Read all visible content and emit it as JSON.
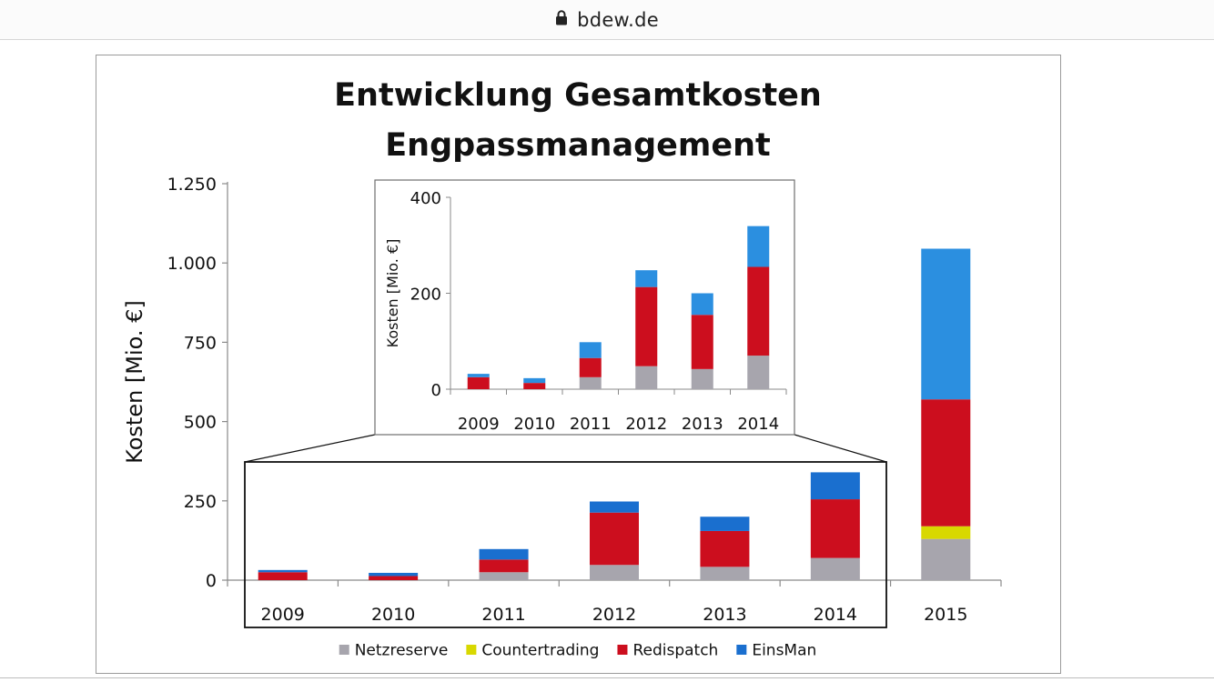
{
  "browser": {
    "url": "bdew.de",
    "lock_icon": "lock-icon"
  },
  "colors": {
    "Netzreserve": "#a7a5ad",
    "Countertrading": "#d8d800",
    "Redispatch": "#cc0e1e",
    "EinsMan": "#1a6fcf",
    "EinsMan_2015": "#2b8fe0"
  },
  "chart_data": [
    {
      "type": "bar",
      "stacked": true,
      "title": "Entwicklung Gesamtkosten Engpassmanagement",
      "ylabel": "Kosten [Mio. €]",
      "xlabel": "",
      "ylim": [
        0,
        1250
      ],
      "yticks": [
        0,
        250,
        500,
        750,
        1000,
        1250
      ],
      "ytick_labels": [
        "0",
        "250",
        "500",
        "750",
        "1.000",
        "1.250"
      ],
      "grid": false,
      "legend": "bottom",
      "categories": [
        "2009",
        "2010",
        "2011",
        "2012",
        "2013",
        "2014",
        "2015"
      ],
      "series": [
        {
          "name": "Netzreserve",
          "values": [
            0,
            0,
            25,
            48,
            42,
            70,
            130
          ]
        },
        {
          "name": "Countertrading",
          "values": [
            0,
            0,
            0,
            0,
            0,
            0,
            40
          ]
        },
        {
          "name": "Redispatch",
          "values": [
            25,
            13,
            40,
            165,
            113,
            185,
            400
          ]
        },
        {
          "name": "EinsMan",
          "values": [
            7,
            10,
            33,
            35,
            45,
            85,
            475
          ]
        }
      ]
    },
    {
      "type": "bar",
      "stacked": true,
      "title": "",
      "ylabel": "Kosten [Mio. €]",
      "xlabel": "",
      "ylim": [
        0,
        400
      ],
      "yticks": [
        0,
        200,
        400
      ],
      "ytick_labels": [
        "0",
        "200",
        "400"
      ],
      "grid": false,
      "categories": [
        "2009",
        "2010",
        "2011",
        "2012",
        "2013",
        "2014"
      ],
      "series": [
        {
          "name": "Netzreserve",
          "values": [
            0,
            0,
            25,
            48,
            42,
            70
          ]
        },
        {
          "name": "Countertrading",
          "values": [
            0,
            0,
            0,
            0,
            0,
            0
          ]
        },
        {
          "name": "Redispatch",
          "values": [
            25,
            13,
            40,
            165,
            113,
            185
          ]
        },
        {
          "name": "EinsMan",
          "values": [
            7,
            10,
            33,
            35,
            45,
            85
          ]
        }
      ]
    }
  ]
}
